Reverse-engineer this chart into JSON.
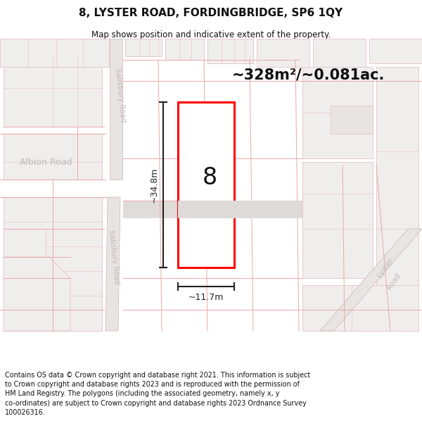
{
  "title": "8, LYSTER ROAD, FORDINGBRIDGE, SP6 1QY",
  "subtitle": "Map shows position and indicative extent of the property.",
  "footer": "Contains OS data © Crown copyright and database right 2021. This information is subject\nto Crown copyright and database rights 2023 and is reproduced with the permission of\nHM Land Registry. The polygons (including the associated geometry, namely x, y\nco-ordinates) are subject to Crown copyright and database rights 2023 Ordnance Survey\n100026316.",
  "area_label": "~328m²/~0.081ac.",
  "width_label": "~11.7m",
  "height_label": "~34.8m",
  "plot_number": "8",
  "map_bg": "#ffffff",
  "bld_fill": "#f0eeed",
  "bld_edge": "#e8c8c8",
  "road_fill": "#e8e4e2",
  "road_edge": "#c8b8b4",
  "pink_line": "#e8a8a8",
  "plot_outline": "#ff0000",
  "plot_fill": "#ffffff",
  "dim_color": "#222222",
  "road_label_color": "#c0b8b8",
  "title_color": "#111111"
}
